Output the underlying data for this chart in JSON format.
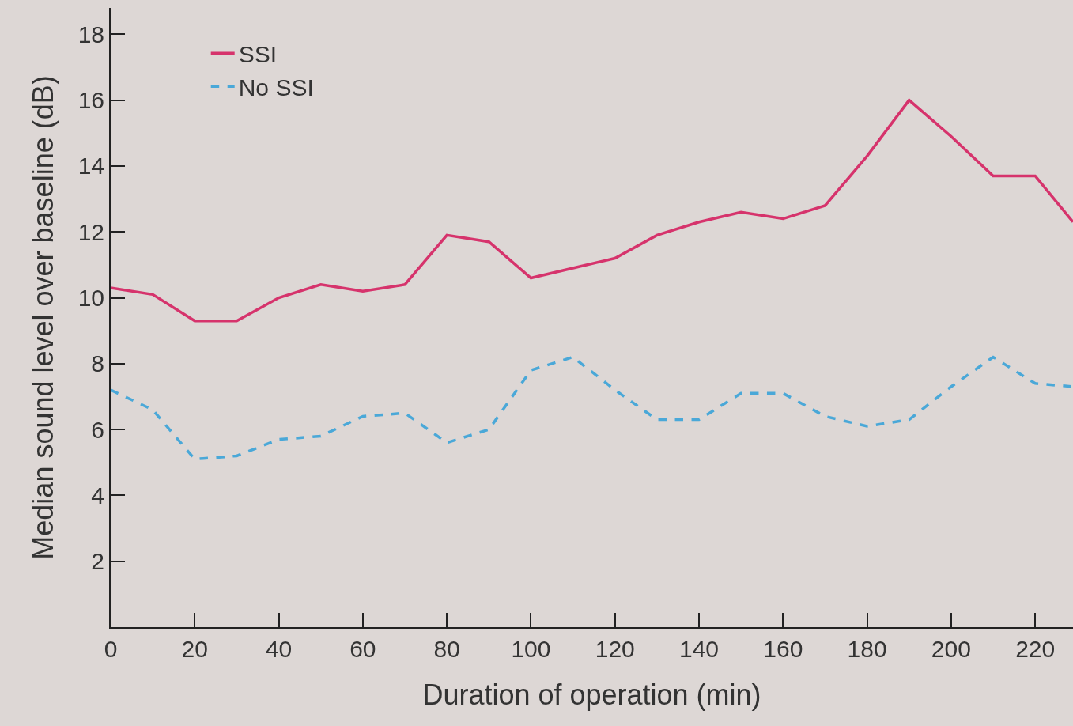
{
  "chart_data": {
    "type": "line",
    "xlabel": "Duration of operation (min)",
    "ylabel": "Median sound level over baseline (dB)",
    "x": [
      0,
      10,
      20,
      30,
      40,
      50,
      60,
      70,
      80,
      90,
      100,
      110,
      120,
      130,
      140,
      150,
      160,
      170,
      180,
      190,
      200,
      210,
      220,
      229
    ],
    "series": [
      {
        "name": "SSI",
        "color": "#d6336c",
        "line_style": "solid",
        "values": [
          10.3,
          10.1,
          9.3,
          9.3,
          10.0,
          10.4,
          10.2,
          10.4,
          11.9,
          11.7,
          10.6,
          10.9,
          11.2,
          11.9,
          12.3,
          12.6,
          12.4,
          12.8,
          14.3,
          16.0,
          14.9,
          13.7,
          13.7,
          12.3
        ]
      },
      {
        "name": "No SSI",
        "color": "#4aa8d8",
        "line_style": "dashed",
        "values": [
          7.2,
          6.6,
          5.1,
          5.2,
          5.7,
          5.8,
          6.4,
          6.5,
          5.6,
          6.0,
          7.8,
          8.2,
          7.2,
          6.3,
          6.3,
          7.1,
          7.1,
          6.4,
          6.1,
          6.3,
          7.3,
          8.2,
          7.4,
          7.3
        ]
      }
    ],
    "xlim": [
      0,
      229
    ],
    "xticks": [
      0,
      20,
      40,
      60,
      80,
      100,
      120,
      140,
      160,
      180,
      200,
      220
    ],
    "ylim": [
      0,
      18.8
    ],
    "yticks": [
      2,
      4,
      6,
      8,
      10,
      12,
      14,
      16,
      18
    ],
    "grid": false,
    "legend": "top left",
    "marker": "none"
  }
}
